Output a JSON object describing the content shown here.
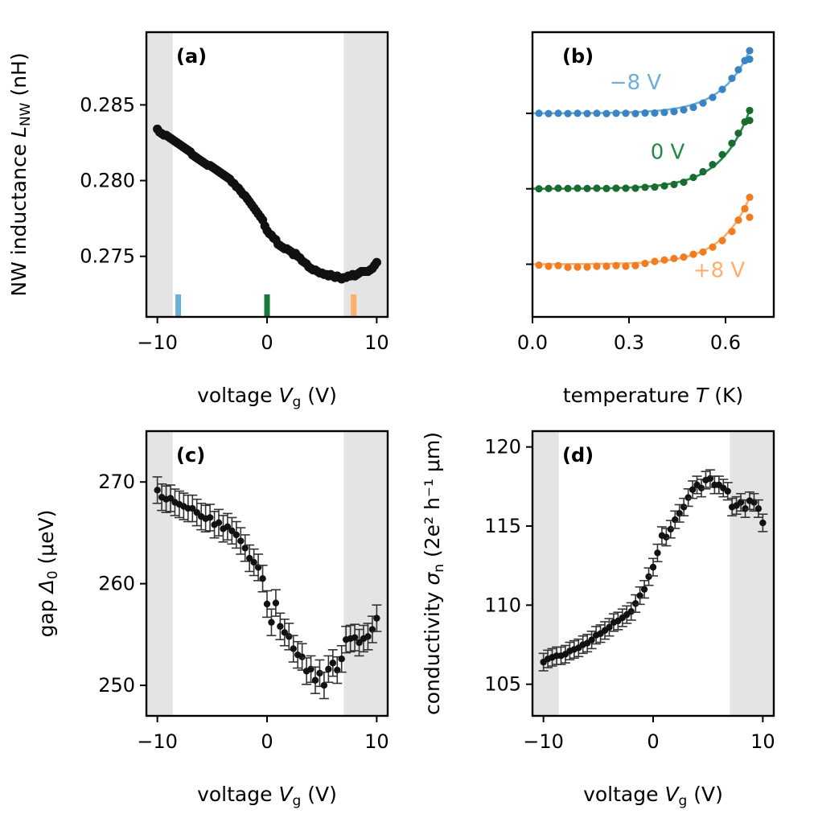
{
  "colors": {
    "shade": "#e4e4e4",
    "black": "#111111",
    "errbar": "#333333",
    "blue_pt": "#3b84c3",
    "blue_fit": "#6baed6",
    "green_pt": "#1a6b32",
    "green_fit": "#238b45",
    "orange_pt": "#f07d22",
    "orange_fit": "#fdae6b"
  },
  "chart_data": [
    {
      "id": "a",
      "type": "scatter",
      "panel_label": "(a)",
      "xlabel_main": "voltage ",
      "xlabel_sym": "V",
      "xlabel_sub": "g",
      "xlabel_unit": " (V)",
      "ylabel_main": "NW inductance ",
      "ylabel_sym": "L",
      "ylabel_sub": "NW",
      "ylabel_unit": " (nH)",
      "xlim": [
        -11,
        11
      ],
      "ylim": [
        0.271,
        0.2898
      ],
      "xticks": [
        -10,
        0,
        10
      ],
      "xtick_labels": [
        "−10",
        "0",
        "10"
      ],
      "yticks": [
        0.275,
        0.28,
        0.285
      ],
      "ytick_labels": [
        "0.275",
        "0.280",
        "0.285"
      ],
      "shaded_x": [
        [
          -11,
          -8.6
        ],
        [
          7,
          11
        ]
      ],
      "markers": [
        {
          "x": -8.1,
          "color": "#6baed6"
        },
        {
          "x": 0.0,
          "color": "#1a7a3a"
        },
        {
          "x": 7.9,
          "color": "#fdae6b"
        }
      ],
      "x": [
        -10.0,
        -9.8,
        -9.6,
        -9.4,
        -9.2,
        -9.0,
        -8.8,
        -8.6,
        -8.4,
        -8.2,
        -8.0,
        -7.8,
        -7.6,
        -7.4,
        -7.2,
        -7.0,
        -6.8,
        -6.6,
        -6.4,
        -6.2,
        -6.0,
        -5.8,
        -5.6,
        -5.4,
        -5.2,
        -5.0,
        -4.8,
        -4.6,
        -4.4,
        -4.2,
        -4.0,
        -3.8,
        -3.6,
        -3.4,
        -3.2,
        -3.0,
        -2.8,
        -2.6,
        -2.4,
        -2.2,
        -2.0,
        -1.8,
        -1.6,
        -1.4,
        -1.2,
        -1.0,
        -0.8,
        -0.6,
        -0.4,
        -0.2,
        0.0,
        0.2,
        0.4,
        0.6,
        0.8,
        1.0,
        1.2,
        1.4,
        1.6,
        1.8,
        2.0,
        2.2,
        2.4,
        2.6,
        2.8,
        3.0,
        3.2,
        3.4,
        3.6,
        3.8,
        4.0,
        4.2,
        4.4,
        4.6,
        4.8,
        5.0,
        5.2,
        5.4,
        5.6,
        5.8,
        6.0,
        6.2,
        6.4,
        6.6,
        6.8,
        7.0,
        7.2,
        7.4,
        7.6,
        7.8,
        8.0,
        8.2,
        8.4,
        8.6,
        8.8,
        9.0,
        9.2,
        9.4,
        9.6,
        9.8,
        10.0
      ],
      "y": [
        0.2834,
        0.2832,
        0.2831,
        0.283,
        0.283,
        0.2829,
        0.2828,
        0.2827,
        0.2826,
        0.2825,
        0.2824,
        0.2823,
        0.2822,
        0.2821,
        0.282,
        0.2819,
        0.2817,
        0.2816,
        0.2815,
        0.2814,
        0.2813,
        0.2812,
        0.2811,
        0.281,
        0.281,
        0.2809,
        0.2808,
        0.2807,
        0.2806,
        0.2805,
        0.2804,
        0.2803,
        0.2802,
        0.2801,
        0.2799,
        0.2798,
        0.2796,
        0.2795,
        0.2793,
        0.2791,
        0.279,
        0.2788,
        0.2786,
        0.2784,
        0.2782,
        0.278,
        0.2778,
        0.2776,
        0.2774,
        0.277,
        0.2767,
        0.2765,
        0.2764,
        0.2762,
        0.2761,
        0.2758,
        0.2757,
        0.2756,
        0.2755,
        0.2755,
        0.2754,
        0.2753,
        0.2751,
        0.2752,
        0.275,
        0.2749,
        0.2747,
        0.2746,
        0.2745,
        0.2743,
        0.2742,
        0.2741,
        0.2741,
        0.274,
        0.2739,
        0.2739,
        0.2738,
        0.2738,
        0.2737,
        0.2738,
        0.2737,
        0.2736,
        0.2737,
        0.2736,
        0.2735,
        0.2736,
        0.2736,
        0.2737,
        0.2737,
        0.2738,
        0.2737,
        0.2738,
        0.2739,
        0.274,
        0.274,
        0.274,
        0.274,
        0.2741,
        0.2742,
        0.2744,
        0.2746
      ]
    },
    {
      "id": "b",
      "type": "scatter+line",
      "panel_label": "(b)",
      "xlabel_main": "temperature ",
      "xlabel_sym": "T",
      "xlabel_unit": " (K)",
      "xlim": [
        0,
        0.75
      ],
      "ylim": [
        0,
        1
      ],
      "xticks": [
        0.0,
        0.3,
        0.6
      ],
      "xtick_labels": [
        "0.0",
        "0.3",
        "0.6"
      ],
      "yticks": [
        0.185,
        0.45,
        0.715
      ],
      "x": [
        0.02,
        0.05,
        0.08,
        0.11,
        0.14,
        0.17,
        0.2,
        0.23,
        0.26,
        0.29,
        0.32,
        0.35,
        0.38,
        0.41,
        0.44,
        0.47,
        0.5,
        0.53,
        0.56,
        0.59,
        0.62,
        0.64,
        0.66,
        0.675
      ],
      "series": [
        {
          "name": "−8 V",
          "label": "−8 V",
          "point_color": "#3b84c3",
          "fit_color": "#6baed6",
          "offset": 0.715,
          "values": [
            0.715,
            0.714,
            0.715,
            0.714,
            0.715,
            0.714,
            0.715,
            0.714,
            0.715,
            0.715,
            0.714,
            0.716,
            0.716,
            0.718,
            0.721,
            0.727,
            0.736,
            0.751,
            0.771,
            0.799,
            0.838,
            0.868,
            0.9,
            0.935
          ],
          "values2": [
            {
              "x": 0.675,
              "y": 0.905
            }
          ]
        },
        {
          "name": "0 V",
          "label": "0 V",
          "point_color": "#1a6b32",
          "fit_color": "#238b45",
          "offset": 0.45,
          "values": [
            0.45,
            0.451,
            0.452,
            0.451,
            0.452,
            0.451,
            0.452,
            0.451,
            0.452,
            0.452,
            0.452,
            0.455,
            0.456,
            0.46,
            0.465,
            0.473,
            0.49,
            0.51,
            0.535,
            0.57,
            0.61,
            0.645,
            0.685,
            0.725
          ],
          "values2": [
            {
              "x": 0.675,
              "y": 0.69
            }
          ]
        },
        {
          "name": "+8 V",
          "label": "+8 V",
          "point_color": "#f07d22",
          "fit_color": "#fdae6b",
          "offset": 0.185,
          "values": [
            0.182,
            0.178,
            0.18,
            0.174,
            0.175,
            0.175,
            0.178,
            0.178,
            0.18,
            0.178,
            0.18,
            0.188,
            0.195,
            0.2,
            0.205,
            0.21,
            0.22,
            0.228,
            0.245,
            0.268,
            0.3,
            0.34,
            0.38,
            0.42
          ],
          "values2": [
            {
              "x": 0.675,
              "y": 0.35
            }
          ]
        }
      ],
      "labels": [
        {
          "text": "−8 V",
          "x": 0.32,
          "y": 0.8,
          "color": "#6baed6",
          "anchor": "middle"
        },
        {
          "text": "0 V",
          "x": 0.42,
          "y": 0.555,
          "color": "#238b45",
          "anchor": "middle"
        },
        {
          "text": "+8 V",
          "x": 0.58,
          "y": 0.14,
          "color": "#fdae6b",
          "anchor": "middle"
        }
      ]
    },
    {
      "id": "c",
      "type": "errorbar",
      "panel_label": "(c)",
      "xlabel_main": "voltage ",
      "xlabel_sym": "V",
      "xlabel_sub": "g",
      "xlabel_unit": " (V)",
      "ylabel_main": "gap ",
      "ylabel_sym": "Δ",
      "ylabel_sub": "0",
      "ylabel_unit": " (μeV)",
      "xlim": [
        -11,
        11
      ],
      "ylim": [
        247,
        275
      ],
      "xticks": [
        -10,
        0,
        10
      ],
      "xtick_labels": [
        "−10",
        "0",
        "10"
      ],
      "yticks": [
        250,
        260,
        270
      ],
      "ytick_labels": [
        "250",
        "260",
        "270"
      ],
      "shaded_x": [
        [
          -11,
          -8.6
        ],
        [
          7,
          11
        ]
      ],
      "x": [
        -10.0,
        -9.6,
        -9.2,
        -8.8,
        -8.4,
        -8.0,
        -7.6,
        -7.2,
        -6.8,
        -6.4,
        -6.0,
        -5.6,
        -5.2,
        -4.8,
        -4.4,
        -4.0,
        -3.6,
        -3.2,
        -2.8,
        -2.4,
        -2.0,
        -1.6,
        -1.2,
        -0.8,
        -0.4,
        0.0,
        0.4,
        0.8,
        1.2,
        1.6,
        2.0,
        2.4,
        2.8,
        3.2,
        3.6,
        4.0,
        4.4,
        4.8,
        5.2,
        5.6,
        6.0,
        6.4,
        6.8,
        7.2,
        7.6,
        8.0,
        8.4,
        8.8,
        9.2,
        9.6,
        10.0
      ],
      "y": [
        269.2,
        268.5,
        268.3,
        268.4,
        268.0,
        267.8,
        267.6,
        267.4,
        267.4,
        267.0,
        266.6,
        266.4,
        266.5,
        265.8,
        266.0,
        265.4,
        265.6,
        265.2,
        264.8,
        264.2,
        263.5,
        262.5,
        262.1,
        261.6,
        260.5,
        258.0,
        256.2,
        258.1,
        255.8,
        255.2,
        254.8,
        253.6,
        253.0,
        252.8,
        251.4,
        251.6,
        250.5,
        251.2,
        250.0,
        251.6,
        252.2,
        251.5,
        252.6,
        254.5,
        254.6,
        254.7,
        254.2,
        254.6,
        254.8,
        255.5,
        256.6
      ],
      "err": 1.3
    },
    {
      "id": "d",
      "type": "errorbar",
      "panel_label": "(d)",
      "xlabel_main": "voltage ",
      "xlabel_sym": "V",
      "xlabel_sub": "g",
      "xlabel_unit": " (V)",
      "ylabel_main": "conductivity ",
      "ylabel_sym": "σ",
      "ylabel_sub": "n",
      "ylabel_unit": " (2e² h⁻¹ μm)",
      "xlim": [
        -11,
        11
      ],
      "ylim": [
        103,
        121
      ],
      "xticks": [
        -10,
        0,
        10
      ],
      "xtick_labels": [
        "−10",
        "0",
        "10"
      ],
      "yticks": [
        105,
        110,
        115,
        120
      ],
      "ytick_labels": [
        "105",
        "110",
        "115",
        "120"
      ],
      "shaded_x": [
        [
          -11,
          -8.6
        ],
        [
          7,
          11
        ]
      ],
      "x": [
        -10.0,
        -9.6,
        -9.2,
        -8.8,
        -8.4,
        -8.0,
        -7.6,
        -7.2,
        -6.8,
        -6.4,
        -6.0,
        -5.6,
        -5.2,
        -4.8,
        -4.4,
        -4.0,
        -3.6,
        -3.2,
        -2.8,
        -2.4,
        -2.0,
        -1.6,
        -1.2,
        -0.8,
        -0.4,
        0.0,
        0.4,
        0.8,
        1.2,
        1.6,
        2.0,
        2.4,
        2.8,
        3.2,
        3.6,
        4.0,
        4.4,
        4.8,
        5.2,
        5.6,
        6.0,
        6.4,
        6.8,
        7.2,
        7.6,
        8.0,
        8.4,
        8.8,
        9.2,
        9.6,
        10.0
      ],
      "y": [
        106.4,
        106.6,
        106.7,
        106.8,
        106.8,
        106.9,
        107.1,
        107.2,
        107.3,
        107.5,
        107.6,
        107.8,
        108.1,
        108.2,
        108.4,
        108.6,
        108.9,
        109.0,
        109.2,
        109.4,
        109.6,
        110.1,
        110.6,
        111.0,
        111.8,
        112.4,
        113.3,
        114.4,
        114.3,
        114.8,
        115.4,
        115.8,
        116.2,
        116.8,
        117.3,
        117.6,
        117.4,
        117.9,
        118.0,
        117.6,
        117.6,
        117.4,
        117.2,
        116.2,
        116.3,
        116.5,
        116.1,
        116.6,
        116.5,
        116.1,
        115.2
      ],
      "err": 0.55
    }
  ]
}
